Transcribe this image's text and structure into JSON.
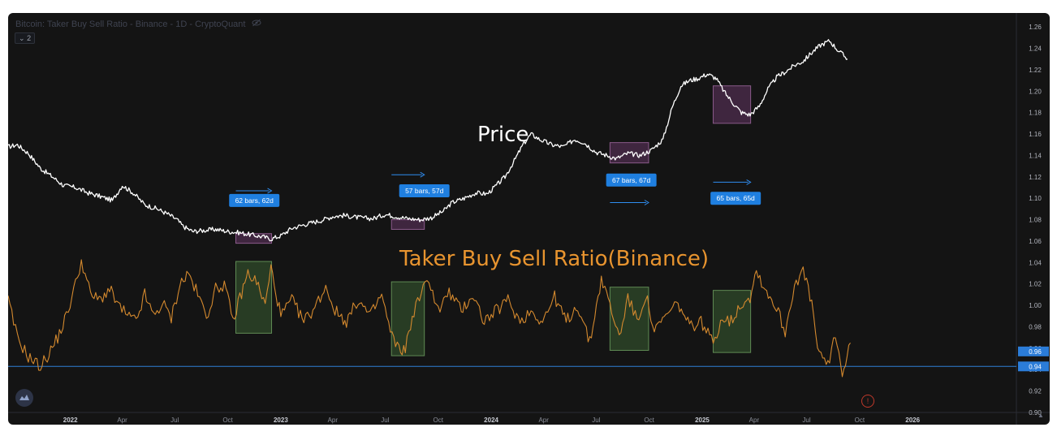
{
  "header": {
    "title": "Bitcoin: Taker Buy Sell Ratio - Binance - 1D - CryptoQuant",
    "collapse_label": "2"
  },
  "colors": {
    "background": "#141414",
    "price_line": "#ffffff",
    "ratio_line": "#d4892e",
    "baseline": "#2f7fd6",
    "label_bg": "#1f7fe0",
    "green_box": "#2f4a2a",
    "purple_box": "#4a2a4a",
    "axis_text": "#b2b5be"
  },
  "icons": [
    "eye-off-icon",
    "chevron-down-icon",
    "cryptoquant-logo-icon",
    "alert-icon"
  ],
  "chart_data": {
    "type": "line",
    "y_axis": {
      "position": "right",
      "ticks": [
        "1.26",
        "1.24",
        "1.22",
        "1.20",
        "1.18",
        "1.16",
        "1.14",
        "1.12",
        "1.10",
        "1.08",
        "1.06",
        "1.04",
        "1.02",
        "1.00",
        "0.98",
        "0.96",
        "0.94",
        "0.92",
        "0.90"
      ],
      "ylim": [
        0.9,
        1.27
      ],
      "highlight_labels": [
        "0.96",
        "0.94"
      ]
    },
    "x_axis": {
      "ticks": [
        "2022",
        "Apr",
        "Jul",
        "Oct",
        "2023",
        "Apr",
        "Jul",
        "Oct",
        "2024",
        "Apr",
        "Jul",
        "Oct",
        "2025",
        "Apr",
        "Jul",
        "Oct",
        "2026"
      ],
      "xlim": [
        "2021-09-15",
        "2026-06-30"
      ]
    },
    "baseline_value": 0.943,
    "annotations": [
      {
        "text": "Price",
        "color": "#ffffff"
      },
      {
        "text": "Taker Buy Sell Ratio(Binance)",
        "color": "#e8942f"
      }
    ],
    "measure_labels": [
      {
        "text": "62 bars, 62d",
        "date": "2022-11-16",
        "value": 1.098
      },
      {
        "text": "57 bars, 57d",
        "date": "2023-09-07",
        "value": 1.107
      },
      {
        "text": "67 bars, 67d",
        "date": "2024-08-31",
        "value": 1.117
      },
      {
        "text": "65 bars, 65d",
        "date": "2025-02-28",
        "value": 1.1
      }
    ],
    "measure_arrows": [
      {
        "from": "2022-10-15",
        "to": "2022-12-16",
        "value": 1.107
      },
      {
        "from": "2023-07-12",
        "to": "2023-09-07",
        "value": 1.122
      },
      {
        "from": "2024-07-25",
        "to": "2024-09-30",
        "value": 1.096
      },
      {
        "from": "2025-01-20",
        "to": "2025-03-26",
        "value": 1.115
      }
    ],
    "highlight_boxes": [
      {
        "kind": "ratio",
        "from": "2022-10-15",
        "to": "2022-12-16",
        "y_top": 1.041,
        "y_bottom": 0.974
      },
      {
        "kind": "ratio",
        "from": "2023-07-12",
        "to": "2023-09-07",
        "y_top": 1.022,
        "y_bottom": 0.953
      },
      {
        "kind": "ratio",
        "from": "2024-07-25",
        "to": "2024-09-30",
        "y_top": 1.017,
        "y_bottom": 0.958
      },
      {
        "kind": "ratio",
        "from": "2025-01-20",
        "to": "2025-03-26",
        "y_top": 1.014,
        "y_bottom": 0.956
      },
      {
        "kind": "price",
        "from": "2022-10-15",
        "to": "2022-12-16",
        "y_top": 1.067,
        "y_bottom": 1.058
      },
      {
        "kind": "price",
        "from": "2023-07-12",
        "to": "2023-09-07",
        "y_top": 1.08,
        "y_bottom": 1.071
      },
      {
        "kind": "price",
        "from": "2024-07-25",
        "to": "2024-09-30",
        "y_top": 1.152,
        "y_bottom": 1.133
      },
      {
        "kind": "price",
        "from": "2025-01-20",
        "to": "2025-03-26",
        "y_top": 1.205,
        "y_bottom": 1.17
      }
    ],
    "series": [
      {
        "key": "price",
        "points": [
          [
            "2021-09-15",
            1.148
          ],
          [
            "2021-10-01",
            1.15
          ],
          [
            "2021-10-20",
            1.142
          ],
          [
            "2021-11-10",
            1.128
          ],
          [
            "2021-12-01",
            1.12
          ],
          [
            "2021-12-20",
            1.112
          ],
          [
            "2022-01-10",
            1.11
          ],
          [
            "2022-02-01",
            1.105
          ],
          [
            "2022-02-20",
            1.102
          ],
          [
            "2022-03-15",
            1.098
          ],
          [
            "2022-04-01",
            1.112
          ],
          [
            "2022-04-20",
            1.105
          ],
          [
            "2022-05-10",
            1.094
          ],
          [
            "2022-06-01",
            1.09
          ],
          [
            "2022-06-20",
            1.085
          ],
          [
            "2022-07-05",
            1.08
          ],
          [
            "2022-07-15",
            1.074
          ],
          [
            "2022-08-01",
            1.069
          ],
          [
            "2022-08-20",
            1.07
          ],
          [
            "2022-09-10",
            1.071
          ],
          [
            "2022-10-01",
            1.069
          ],
          [
            "2022-10-20",
            1.068
          ],
          [
            "2022-11-10",
            1.066
          ],
          [
            "2022-12-01",
            1.064
          ],
          [
            "2022-12-15",
            1.062
          ],
          [
            "2023-01-01",
            1.065
          ],
          [
            "2023-01-20",
            1.072
          ],
          [
            "2023-02-15",
            1.076
          ],
          [
            "2023-03-10",
            1.079
          ],
          [
            "2023-04-01",
            1.083
          ],
          [
            "2023-04-20",
            1.084
          ],
          [
            "2023-05-15",
            1.082
          ],
          [
            "2023-06-10",
            1.081
          ],
          [
            "2023-07-01",
            1.085
          ],
          [
            "2023-07-20",
            1.083
          ],
          [
            "2023-08-10",
            1.081
          ],
          [
            "2023-09-01",
            1.08
          ],
          [
            "2023-09-20",
            1.082
          ],
          [
            "2023-10-10",
            1.088
          ],
          [
            "2023-10-25",
            1.096
          ],
          [
            "2023-11-15",
            1.1
          ],
          [
            "2023-12-05",
            1.105
          ],
          [
            "2023-12-25",
            1.104
          ],
          [
            "2024-01-10",
            1.112
          ],
          [
            "2024-01-25",
            1.12
          ],
          [
            "2024-02-10",
            1.135
          ],
          [
            "2024-02-25",
            1.15
          ],
          [
            "2024-03-10",
            1.16
          ],
          [
            "2024-03-25",
            1.155
          ],
          [
            "2024-04-15",
            1.15
          ],
          [
            "2024-05-05",
            1.148
          ],
          [
            "2024-05-25",
            1.155
          ],
          [
            "2024-06-10",
            1.152
          ],
          [
            "2024-07-01",
            1.143
          ],
          [
            "2024-07-20",
            1.14
          ],
          [
            "2024-08-05",
            1.137
          ],
          [
            "2024-08-25",
            1.142
          ],
          [
            "2024-09-15",
            1.14
          ],
          [
            "2024-10-05",
            1.145
          ],
          [
            "2024-10-25",
            1.155
          ],
          [
            "2024-11-10",
            1.185
          ],
          [
            "2024-11-25",
            1.205
          ],
          [
            "2024-12-10",
            1.21
          ],
          [
            "2024-12-25",
            1.212
          ],
          [
            "2025-01-10",
            1.216
          ],
          [
            "2025-01-25",
            1.212
          ],
          [
            "2025-02-10",
            1.198
          ],
          [
            "2025-02-25",
            1.188
          ],
          [
            "2025-03-10",
            1.18
          ],
          [
            "2025-03-25",
            1.178
          ],
          [
            "2025-04-10",
            1.186
          ],
          [
            "2025-04-25",
            1.202
          ],
          [
            "2025-05-10",
            1.213
          ],
          [
            "2025-05-25",
            1.218
          ],
          [
            "2025-06-10",
            1.224
          ],
          [
            "2025-06-25",
            1.228
          ],
          [
            "2025-07-10",
            1.236
          ],
          [
            "2025-07-25",
            1.243
          ],
          [
            "2025-08-10",
            1.247
          ],
          [
            "2025-08-25",
            1.238
          ],
          [
            "2025-09-10",
            1.23
          ]
        ]
      },
      {
        "key": "ratio",
        "points": [
          [
            "2021-09-15",
            1.005
          ],
          [
            "2021-10-01",
            0.97
          ],
          [
            "2021-10-20",
            0.952
          ],
          [
            "2021-11-10",
            0.943
          ],
          [
            "2021-11-25",
            0.955
          ],
          [
            "2021-12-10",
            0.97
          ],
          [
            "2021-12-25",
            0.99
          ],
          [
            "2022-01-10",
            1.02
          ],
          [
            "2022-01-20",
            1.042
          ],
          [
            "2022-02-05",
            1.01
          ],
          [
            "2022-02-20",
            1.005
          ],
          [
            "2022-03-10",
            1.015
          ],
          [
            "2022-03-25",
            1.0
          ],
          [
            "2022-04-10",
            0.99
          ],
          [
            "2022-04-25",
            0.985
          ],
          [
            "2022-05-10",
            1.01
          ],
          [
            "2022-05-25",
            0.99
          ],
          [
            "2022-06-10",
            1.002
          ],
          [
            "2022-06-25",
            0.988
          ],
          [
            "2022-07-10",
            1.02
          ],
          [
            "2022-07-25",
            1.03
          ],
          [
            "2022-08-10",
            1.01
          ],
          [
            "2022-08-25",
            0.99
          ],
          [
            "2022-09-10",
            1.015
          ],
          [
            "2022-09-25",
            1.02
          ],
          [
            "2022-10-10",
            0.985
          ],
          [
            "2022-10-25",
            1.012
          ],
          [
            "2022-11-05",
            1.03
          ],
          [
            "2022-11-20",
            1.022
          ],
          [
            "2022-12-05",
            1.0
          ],
          [
            "2022-12-15",
            1.035
          ],
          [
            "2023-01-01",
            0.99
          ],
          [
            "2023-01-20",
            1.005
          ],
          [
            "2023-02-10",
            0.985
          ],
          [
            "2023-03-01",
            0.998
          ],
          [
            "2023-03-20",
            1.018
          ],
          [
            "2023-04-05",
            0.995
          ],
          [
            "2023-04-25",
            0.985
          ],
          [
            "2023-05-15",
            1.005
          ],
          [
            "2023-06-05",
            0.99
          ],
          [
            "2023-06-25",
            1.01
          ],
          [
            "2023-07-10",
            0.975
          ],
          [
            "2023-07-25",
            0.958
          ],
          [
            "2023-08-05",
            0.96
          ],
          [
            "2023-08-20",
            0.995
          ],
          [
            "2023-09-05",
            1.015
          ],
          [
            "2023-09-15",
            1.025
          ],
          [
            "2023-10-01",
            0.995
          ],
          [
            "2023-10-20",
            1.012
          ],
          [
            "2023-11-10",
            0.995
          ],
          [
            "2023-11-30",
            1.01
          ],
          [
            "2023-12-20",
            0.985
          ],
          [
            "2024-01-10",
            0.995
          ],
          [
            "2024-01-30",
            1.005
          ],
          [
            "2024-02-20",
            0.985
          ],
          [
            "2024-03-10",
            0.995
          ],
          [
            "2024-03-30",
            0.985
          ],
          [
            "2024-04-20",
            1.008
          ],
          [
            "2024-05-10",
            0.985
          ],
          [
            "2024-05-30",
            1.0
          ],
          [
            "2024-06-20",
            0.965
          ],
          [
            "2024-07-10",
            1.025
          ],
          [
            "2024-07-25",
            1.0
          ],
          [
            "2024-08-10",
            0.97
          ],
          [
            "2024-08-25",
            1.008
          ],
          [
            "2024-09-10",
            0.985
          ],
          [
            "2024-09-25",
            1.01
          ],
          [
            "2024-10-10",
            0.975
          ],
          [
            "2024-10-30",
            0.99
          ],
          [
            "2024-11-20",
            1.002
          ],
          [
            "2024-12-10",
            0.98
          ],
          [
            "2024-12-30",
            0.985
          ],
          [
            "2025-01-20",
            0.965
          ],
          [
            "2025-02-05",
            0.99
          ],
          [
            "2025-02-20",
            0.985
          ],
          [
            "2025-03-10",
            1.002
          ],
          [
            "2025-03-25",
            1.008
          ],
          [
            "2025-04-05",
            1.033
          ],
          [
            "2025-04-20",
            1.015
          ],
          [
            "2025-05-10",
            0.998
          ],
          [
            "2025-05-25",
            0.975
          ],
          [
            "2025-06-10",
            1.02
          ],
          [
            "2025-06-25",
            1.032
          ],
          [
            "2025-07-10",
            1.002
          ],
          [
            "2025-07-20",
            0.96
          ],
          [
            "2025-08-01",
            0.945
          ],
          [
            "2025-08-10",
            0.948
          ],
          [
            "2025-08-20",
            0.975
          ],
          [
            "2025-09-01",
            0.935
          ],
          [
            "2025-09-15",
            0.965
          ]
        ]
      }
    ]
  }
}
